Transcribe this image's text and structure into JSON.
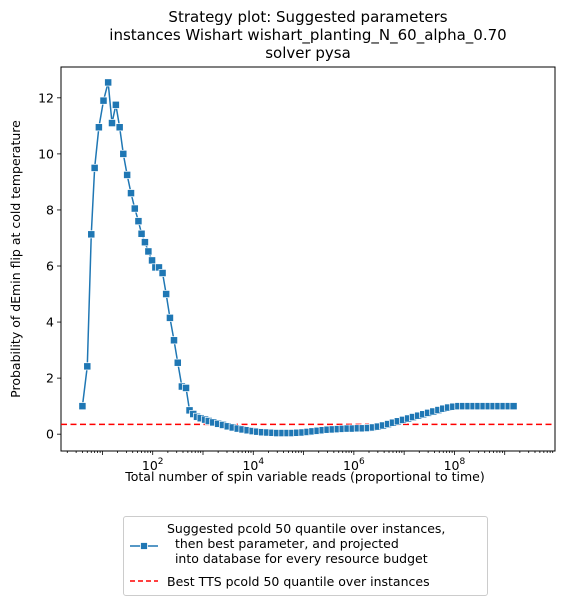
{
  "title_lines": [
    "Strategy plot: Suggested parameters",
    "instances Wishart wishart_planting_N_60_alpha_0.70",
    "solver pysa"
  ],
  "chart_data": {
    "type": "line",
    "xlabel": "Total number of spin variable reads (proportional to time)",
    "ylabel": "Probability of dEmin flip at cold temperature",
    "x_scale": "log",
    "xlim": [
      1.5,
      10000000000.0
    ],
    "ylim": [
      -0.6,
      13.1
    ],
    "x_ticks": [
      100,
      10000,
      1000000,
      100000000
    ],
    "x_tick_labels": [
      "10^2",
      "10^4",
      "10^6",
      "10^8"
    ],
    "y_ticks": [
      0,
      2,
      4,
      6,
      8,
      10,
      12
    ],
    "y_tick_labels": [
      "0",
      "2",
      "4",
      "6",
      "8",
      "10",
      "12"
    ],
    "grid": false,
    "legend_position": "below plot",
    "series": [
      {
        "name": "Suggested pcold 50 quantile over instances,\n  then best parameter, and projected\n  into database for every resource budget",
        "color": "#1f77b4",
        "marker": "square",
        "points": [
          [
            4,
            1.0
          ],
          [
            5,
            2.42
          ],
          [
            6,
            7.13
          ],
          [
            7,
            9.5
          ],
          [
            8.5,
            10.95
          ],
          [
            10.5,
            11.9
          ],
          [
            13,
            12.55
          ],
          [
            15.5,
            11.1
          ],
          [
            18.5,
            11.75
          ],
          [
            22,
            10.95
          ],
          [
            26,
            10.0
          ],
          [
            31,
            9.25
          ],
          [
            37,
            8.6
          ],
          [
            44,
            8.05
          ],
          [
            52,
            7.6
          ],
          [
            60,
            7.15
          ],
          [
            70,
            6.85
          ],
          [
            82,
            6.52
          ],
          [
            97,
            6.2
          ],
          [
            113,
            5.95
          ],
          [
            133,
            5.95
          ],
          [
            157,
            5.75
          ],
          [
            185,
            5.0
          ],
          [
            220,
            4.15
          ],
          [
            265,
            3.35
          ],
          [
            315,
            2.55
          ],
          [
            380,
            1.7
          ],
          [
            460,
            1.65
          ],
          [
            540,
            0.85
          ],
          [
            640,
            0.72
          ],
          [
            760,
            0.62
          ],
          [
            900,
            0.57
          ],
          [
            1100,
            0.52
          ],
          [
            1300,
            0.47
          ],
          [
            1600,
            0.42
          ],
          [
            2000,
            0.37
          ],
          [
            2500,
            0.33
          ],
          [
            3100,
            0.28
          ],
          [
            3900,
            0.24
          ],
          [
            4900,
            0.2
          ],
          [
            6100,
            0.17
          ],
          [
            7700,
            0.14
          ],
          [
            9700,
            0.11
          ],
          [
            12000,
            0.09
          ],
          [
            15000,
            0.07
          ],
          [
            19000,
            0.06
          ],
          [
            24000,
            0.05
          ],
          [
            30000,
            0.04
          ],
          [
            38000,
            0.04
          ],
          [
            48000,
            0.04
          ],
          [
            60000,
            0.04
          ],
          [
            75000,
            0.05
          ],
          [
            95000,
            0.06
          ],
          [
            120000,
            0.08
          ],
          [
            150000,
            0.1
          ],
          [
            190000,
            0.12
          ],
          [
            240000,
            0.14
          ],
          [
            300000,
            0.16
          ],
          [
            380000,
            0.17
          ],
          [
            480000,
            0.18
          ],
          [
            600000,
            0.19
          ],
          [
            750000,
            0.2
          ],
          [
            950000,
            0.2
          ],
          [
            1200000,
            0.21
          ],
          [
            1500000,
            0.21
          ],
          [
            1900000,
            0.22
          ],
          [
            2400000,
            0.24
          ],
          [
            3000000,
            0.27
          ],
          [
            3800000,
            0.31
          ],
          [
            4800000,
            0.36
          ],
          [
            6000000,
            0.41
          ],
          [
            7500000,
            0.46
          ],
          [
            9500000,
            0.51
          ],
          [
            12000000,
            0.56
          ],
          [
            15000000,
            0.61
          ],
          [
            19000000,
            0.66
          ],
          [
            24000000,
            0.71
          ],
          [
            30000000,
            0.76
          ],
          [
            38000000,
            0.81
          ],
          [
            48000000,
            0.86
          ],
          [
            60000000,
            0.91
          ],
          [
            75000000,
            0.95
          ],
          [
            95000000,
            0.98
          ],
          [
            120000000,
            1.0
          ],
          [
            150000000,
            1.0
          ],
          [
            190000000,
            1.0
          ],
          [
            240000000,
            1.0
          ],
          [
            300000000,
            1.0
          ],
          [
            380000000,
            1.0
          ],
          [
            480000000,
            1.0
          ],
          [
            600000000,
            1.0
          ],
          [
            750000000,
            1.0
          ],
          [
            950000000,
            1.0
          ],
          [
            1200000000,
            1.0
          ],
          [
            1500000000,
            1.0
          ]
        ]
      }
    ],
    "reference_lines": [
      {
        "name": "Best TTS pcold 50 quantile over instances",
        "y": 0.35,
        "color": "#ff0000",
        "style": "dashed"
      }
    ]
  }
}
